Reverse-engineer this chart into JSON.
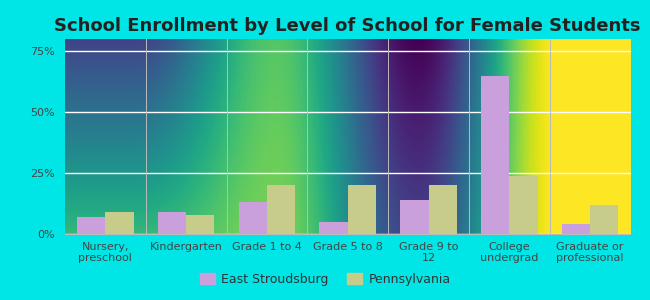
{
  "title": "School Enrollment by Level of School for Female Students",
  "categories": [
    "Nursery,\npreschool",
    "Kindergarten",
    "Grade 1 to 4",
    "Grade 5 to 8",
    "Grade 9 to\n12",
    "College\nundergrad",
    "Graduate or\nprofessional"
  ],
  "east_stroudsburg": [
    7,
    9,
    13,
    5,
    14,
    65,
    4
  ],
  "pennsylvania": [
    9,
    8,
    20,
    20,
    20,
    24,
    12
  ],
  "bar_color_es": "#c9a0dc",
  "bar_color_pa": "#c8cc8a",
  "background_outer": "#00e5e5",
  "legend_label_es": "East Stroudsburg",
  "legend_label_pa": "Pennsylvania",
  "yticks": [
    0,
    25,
    50,
    75
  ],
  "ylim": [
    0,
    80
  ],
  "bar_width": 0.35,
  "title_fontsize": 13,
  "tick_fontsize": 8,
  "legend_fontsize": 9,
  "grid_color": "#dddddd"
}
